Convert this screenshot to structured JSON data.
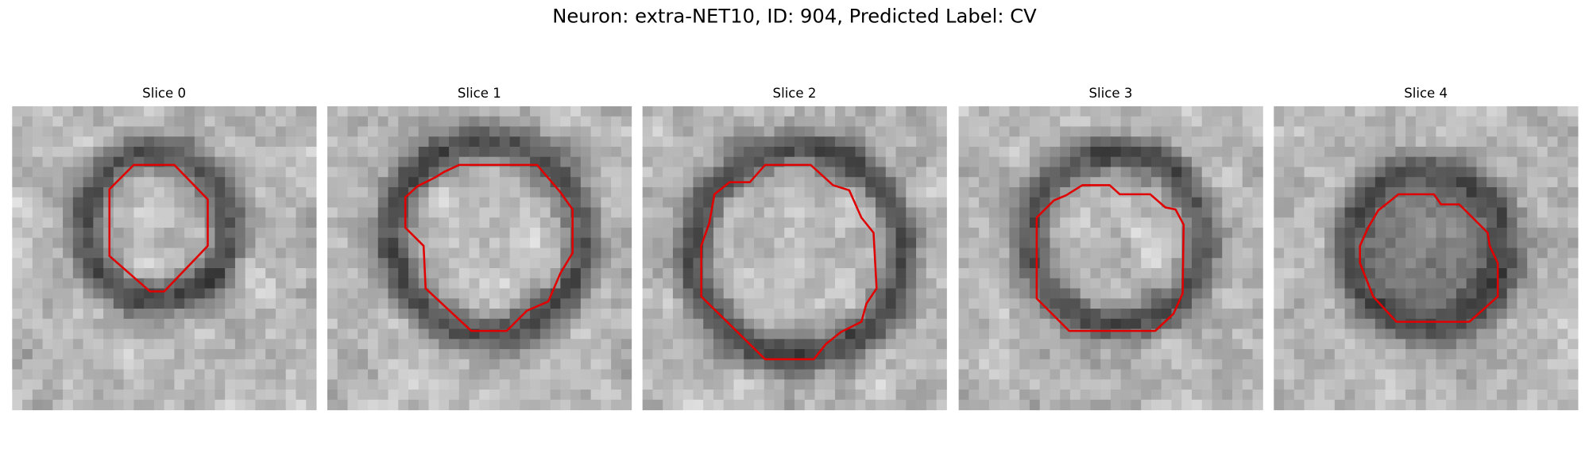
{
  "figure": {
    "title": "Neuron: extra-NET10, ID: 904, Predicted Label: CV",
    "panels": [
      {
        "title": "Slice 0"
      },
      {
        "title": "Slice 1"
      },
      {
        "title": "Slice 2"
      },
      {
        "title": "Slice 3"
      },
      {
        "title": "Slice 4"
      }
    ]
  }
}
